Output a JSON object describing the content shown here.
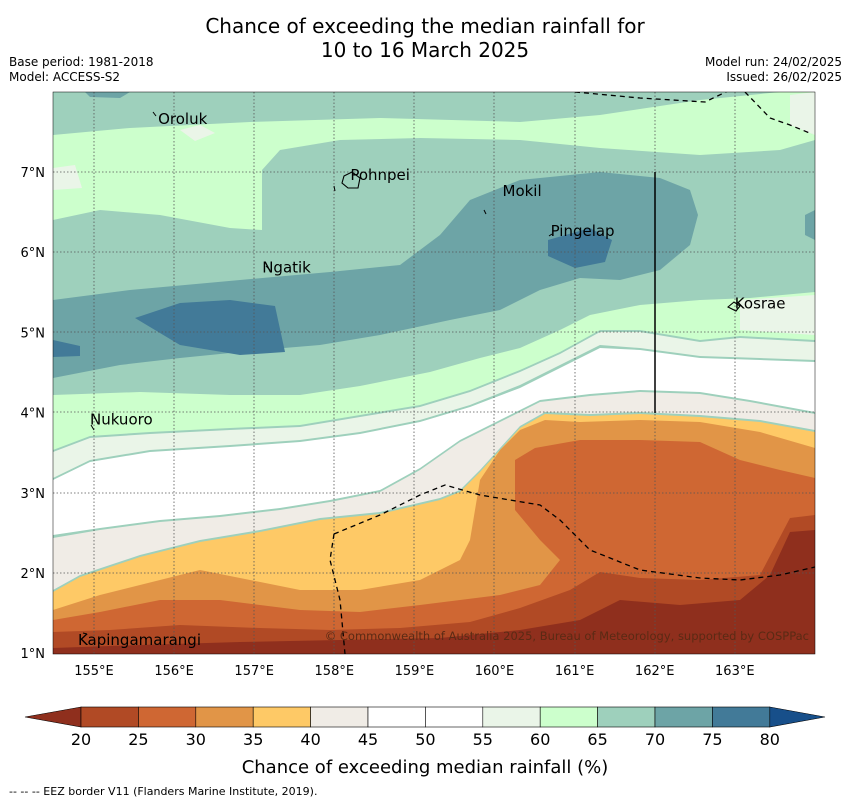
{
  "title_line1": "Chance of exceeding the median rainfall for",
  "title_line2": "10 to 16 March 2025",
  "base_period": "Base period: 1981-2018",
  "model": "Model: ACCESS-S2",
  "model_run": "Model run: 24/02/2025",
  "issued": "Issued: 26/02/2025",
  "copyright": "© Commonwealth of Australia 2025, Bureau of Meteorology, supported by COSPPac",
  "lon_ticks": [
    "155°E",
    "156°E",
    "157°E",
    "158°E",
    "159°E",
    "160°E",
    "161°E",
    "162°E",
    "163°E"
  ],
  "lat_ticks": [
    "7°N",
    "6°N",
    "5°N",
    "4°N",
    "3°N",
    "2°N",
    "1°N"
  ],
  "places": [
    {
      "name": "Oroluk",
      "lon": 155.8,
      "lat": 7.6
    },
    {
      "name": "Pohnpei",
      "lon": 158.2,
      "lat": 6.9
    },
    {
      "name": "Mokil",
      "lon": 160.1,
      "lat": 6.7
    },
    {
      "name": "Pingelap",
      "lon": 160.7,
      "lat": 6.2
    },
    {
      "name": "Ngatik",
      "lon": 157.1,
      "lat": 5.75
    },
    {
      "name": "Kosrae",
      "lon": 163.0,
      "lat": 5.3
    },
    {
      "name": "Nukuoro",
      "lon": 154.95,
      "lat": 3.85
    },
    {
      "name": "Kapingamarangi",
      "lon": 154.8,
      "lat": 1.1
    }
  ],
  "colorbar": {
    "label": "Chance of exceeding median rainfall (%)",
    "ticks": [
      "20",
      "25",
      "30",
      "35",
      "40",
      "45",
      "50",
      "55",
      "60",
      "65",
      "70",
      "75",
      "80"
    ],
    "colors": {
      "lt20": "#8f2f1d",
      "c20_25": "#b14a25",
      "c25_30": "#cf6733",
      "c30_35": "#e19547",
      "c35_40": "#fec966",
      "c40_45": "#f0ece6",
      "c45_50": "#ffffff",
      "c50_55": "#ffffff",
      "c55_60": "#eaf5e8",
      "c60_65": "#ccffcc",
      "c65_70": "#9ed0bc",
      "c70_75": "#6da4a6",
      "c75_80": "#427a98",
      "gt80": "#174f8a"
    }
  },
  "footer": "--  --  -- EEZ border V11 (Flanders Marine Institute, 2019)."
}
